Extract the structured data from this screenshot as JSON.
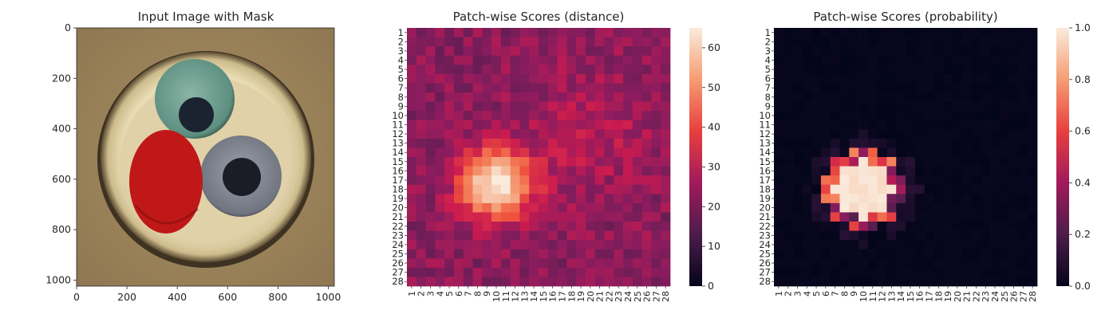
{
  "figure": {
    "panels": [
      {
        "title": "Input Image with Mask"
      },
      {
        "title": "Patch-wise Scores (distance)"
      },
      {
        "title": "Patch-wise Scores (probability)"
      }
    ]
  },
  "colors": {
    "mask_red": "#c01818",
    "background_tan": "#9c8258",
    "cup_cream": "#e8dcb4",
    "teal_disc": "#6a9c8e",
    "grey_disc": "#8a8f98"
  },
  "chart_data": [
    {
      "type": "image",
      "title": "Input Image with Mask",
      "xlabel": "",
      "ylabel": "",
      "xlim": [
        0,
        1024
      ],
      "ylim": [
        1024,
        0
      ],
      "xticks": [
        "0",
        "200",
        "400",
        "600",
        "800",
        "1000"
      ],
      "yticks": [
        "0",
        "200",
        "400",
        "600",
        "800",
        "1000"
      ],
      "objects": [
        {
          "name": "cup",
          "center": [
            512,
            512
          ],
          "radius": 425
        },
        {
          "name": "teal-disc",
          "center": [
            440,
            280
          ],
          "radius": 155
        },
        {
          "name": "grey-disc",
          "center": [
            595,
            590
          ],
          "radius": 160
        },
        {
          "name": "red-mask",
          "center": [
            355,
            610
          ],
          "rx": 145,
          "ry": 205
        }
      ]
    },
    {
      "type": "heatmap",
      "title": "Patch-wise Scores (distance)",
      "rows": [
        "1",
        "2",
        "3",
        "4",
        "5",
        "6",
        "7",
        "8",
        "9",
        "10",
        "11",
        "12",
        "13",
        "14",
        "15",
        "16",
        "17",
        "18",
        "19",
        "20",
        "21",
        "22",
        "23",
        "24",
        "25",
        "26",
        "27",
        "28"
      ],
      "cols": [
        "1",
        "2",
        "3",
        "4",
        "5",
        "6",
        "7",
        "8",
        "9",
        "10",
        "11",
        "12",
        "13",
        "14",
        "15",
        "16",
        "17",
        "18",
        "19",
        "20",
        "21",
        "22",
        "23",
        "24",
        "25",
        "26",
        "27",
        "28"
      ],
      "colorbar": {
        "min": 0,
        "max": 65,
        "ticks": [
          "0",
          "10",
          "20",
          "30",
          "40",
          "50",
          "60"
        ]
      },
      "base_value": 24,
      "peak": {
        "row": 17.5,
        "col": 10,
        "value": 65,
        "sigma_row": 2.6,
        "sigma_col": 2.6
      },
      "secondary": {
        "row": 12,
        "col": 20,
        "value": 6,
        "sigma": 5
      }
    },
    {
      "type": "heatmap",
      "title": "Patch-wise Scores (probability)",
      "rows": [
        "1",
        "2",
        "3",
        "4",
        "5",
        "6",
        "7",
        "8",
        "9",
        "10",
        "11",
        "12",
        "13",
        "14",
        "15",
        "16",
        "17",
        "18",
        "19",
        "20",
        "21",
        "22",
        "23",
        "24",
        "25",
        "26",
        "27",
        "28"
      ],
      "cols": [
        "1",
        "2",
        "3",
        "4",
        "5",
        "6",
        "7",
        "8",
        "9",
        "10",
        "11",
        "12",
        "13",
        "14",
        "15",
        "16",
        "17",
        "18",
        "19",
        "20",
        "21",
        "22",
        "23",
        "24",
        "25",
        "26",
        "27",
        "28"
      ],
      "colorbar": {
        "min": 0.0,
        "max": 1.0,
        "ticks": [
          "0.0",
          "0.2",
          "0.4",
          "0.6",
          "0.8",
          "1.0"
        ]
      },
      "base_value": 0.0,
      "peak": {
        "row": 18,
        "col": 10,
        "value": 1.0,
        "radius_full": 3.0,
        "radius_edge": 4.4
      }
    }
  ]
}
